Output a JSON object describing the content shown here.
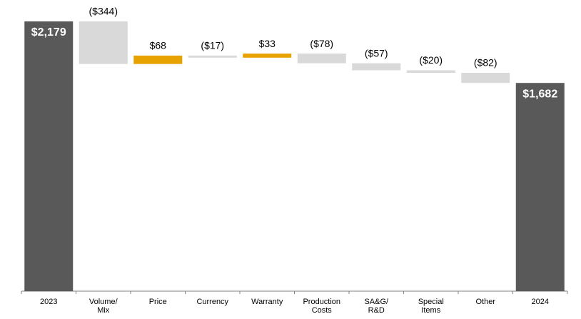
{
  "chart_data": {
    "type": "waterfall",
    "categories": [
      "2023",
      "Volume/\nMix",
      "Price",
      "Currency",
      "Warranty",
      "Production\nCosts",
      "SA&G/\nR&D",
      "Special\nItems",
      "Other",
      "2024"
    ],
    "values": [
      2179,
      -344,
      68,
      -17,
      33,
      -78,
      -57,
      -20,
      -82,
      1682
    ],
    "value_labels": [
      "$2,179",
      "($344)",
      "$68",
      "($17)",
      "$33",
      "($78)",
      "($57)",
      "($20)",
      "($82)",
      "$1,682"
    ],
    "measures": [
      "total",
      "relative",
      "relative",
      "relative",
      "relative",
      "relative",
      "relative",
      "relative",
      "relative",
      "total"
    ],
    "colors": {
      "total": "#595959",
      "increase": "#e8a200",
      "decrease": "#d9d9d9"
    }
  }
}
